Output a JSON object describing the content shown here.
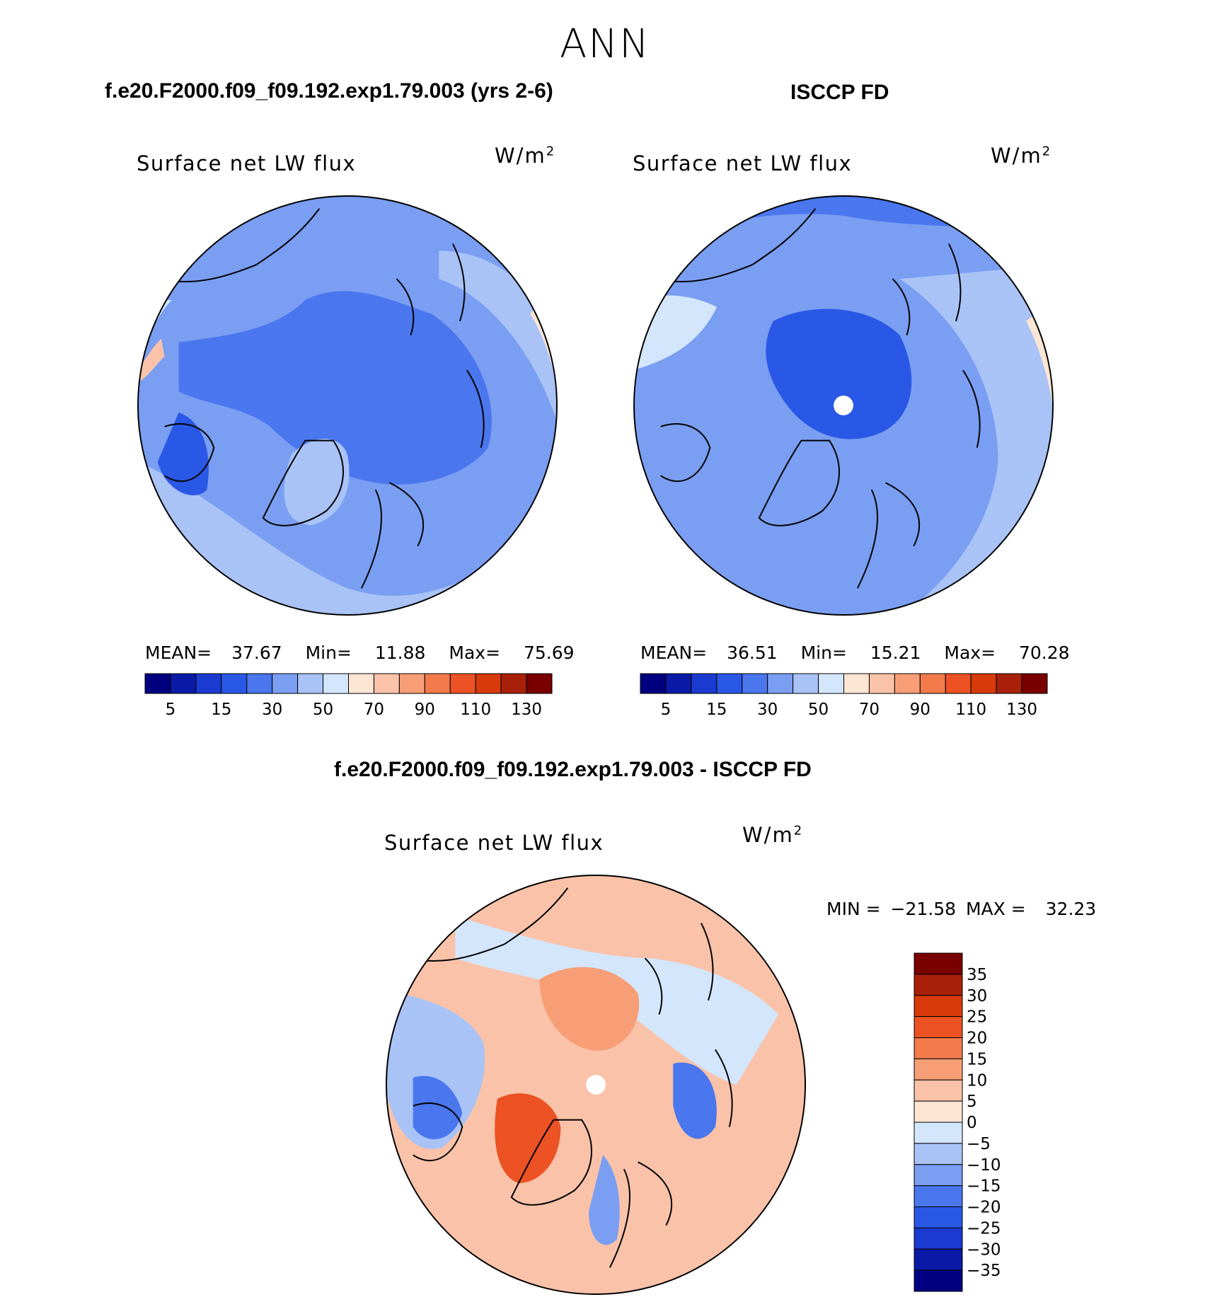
{
  "figure": {
    "season": "ANN",
    "model_title": "f.e20.F2000.f09_f09.192.exp1.79.003 (yrs 2-6)",
    "obs_title": "ISCCP FD",
    "diff_title": "f.e20.F2000.f09_f09.192.exp1.79.003 - ISCCP FD"
  },
  "chart_data": [
    {
      "type": "heatmap",
      "id": "model",
      "projection": "north polar stereographic",
      "title": "Surface net LW flux",
      "units": "W/m²",
      "stats": {
        "mean_label": "MEAN=",
        "mean": "37.67",
        "min_label": "Min=",
        "min": "11.88",
        "max_label": "Max=",
        "max": "75.69"
      },
      "colorbar": {
        "levels": [
          "5",
          "15",
          "30",
          "50",
          "70",
          "90",
          "110",
          "130"
        ],
        "colors": [
          "#000080",
          "#0a1aa6",
          "#1a3ad0",
          "#2a58e6",
          "#4a76ee",
          "#7a9ef2",
          "#a9c3f6",
          "#d4e6fb",
          "#fde5d4",
          "#f9c2a9",
          "#f79e76",
          "#f27a4b",
          "#ec5223",
          "#d83a0c",
          "#a8200a",
          "#7a0000"
        ]
      }
    },
    {
      "type": "heatmap",
      "id": "obs",
      "projection": "north polar stereographic",
      "title": "Surface net LW flux",
      "units": "W/m²",
      "stats": {
        "mean_label": "MEAN=",
        "mean": "36.51",
        "min_label": "Min=",
        "min": "15.21",
        "max_label": "Max=",
        "max": "70.28"
      },
      "colorbar": {
        "levels": [
          "5",
          "15",
          "30",
          "50",
          "70",
          "90",
          "110",
          "130"
        ],
        "colors": [
          "#000080",
          "#0a1aa6",
          "#1a3ad0",
          "#2a58e6",
          "#4a76ee",
          "#7a9ef2",
          "#a9c3f6",
          "#d4e6fb",
          "#fde5d4",
          "#f9c2a9",
          "#f79e76",
          "#f27a4b",
          "#ec5223",
          "#d83a0c",
          "#a8200a",
          "#7a0000"
        ]
      }
    },
    {
      "type": "heatmap",
      "id": "difference",
      "projection": "north polar stereographic",
      "title": "Surface net LW flux",
      "units": "W/m²",
      "stats": {
        "min_label": "MIN =",
        "min": "−21.58",
        "max_label": "MAX =",
        "max": "32.23"
      },
      "colorbar": {
        "levels": [
          "35",
          "30",
          "25",
          "20",
          "15",
          "10",
          "5",
          "0",
          "−5",
          "−10",
          "−15",
          "−20",
          "−25",
          "−30",
          "−35"
        ],
        "colors": [
          "#7a0000",
          "#a8200a",
          "#d83a0c",
          "#ec5223",
          "#f27a4b",
          "#f79e76",
          "#f9c2a9",
          "#fde5d4",
          "#d4e6fb",
          "#a9c3f6",
          "#7a9ef2",
          "#4a76ee",
          "#2a58e6",
          "#1a3ad0",
          "#0a1aa6",
          "#000080"
        ]
      }
    }
  ]
}
